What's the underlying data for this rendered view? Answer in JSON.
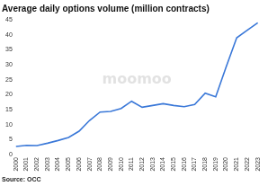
{
  "chart_data": {
    "type": "line",
    "title": "Average daily options volume (million contracts)",
    "source": "Source: OCC",
    "watermark": "moomoo",
    "categories": [
      "2000",
      "2001",
      "2002",
      "2003",
      "2004",
      "2005",
      "2006",
      "2007",
      "2008",
      "2009",
      "2010",
      "2011",
      "2012",
      "2013",
      "2014",
      "2015",
      "2016",
      "2017",
      "2018",
      "2019",
      "2020",
      "2021",
      "2022",
      "2023"
    ],
    "values": [
      2.7,
      3.1,
      3.0,
      3.8,
      4.7,
      5.7,
      7.8,
      11.4,
      14.2,
      14.4,
      15.4,
      17.8,
      15.8,
      16.4,
      17.0,
      16.4,
      16.0,
      16.7,
      20.5,
      19.3,
      29.3,
      39.0,
      41.5,
      44.0
    ],
    "color": "#3a78d8",
    "ylim": [
      0,
      45
    ],
    "yticks": [
      0,
      5,
      10,
      15,
      20,
      25,
      30,
      35,
      40,
      45
    ],
    "grid": false
  }
}
